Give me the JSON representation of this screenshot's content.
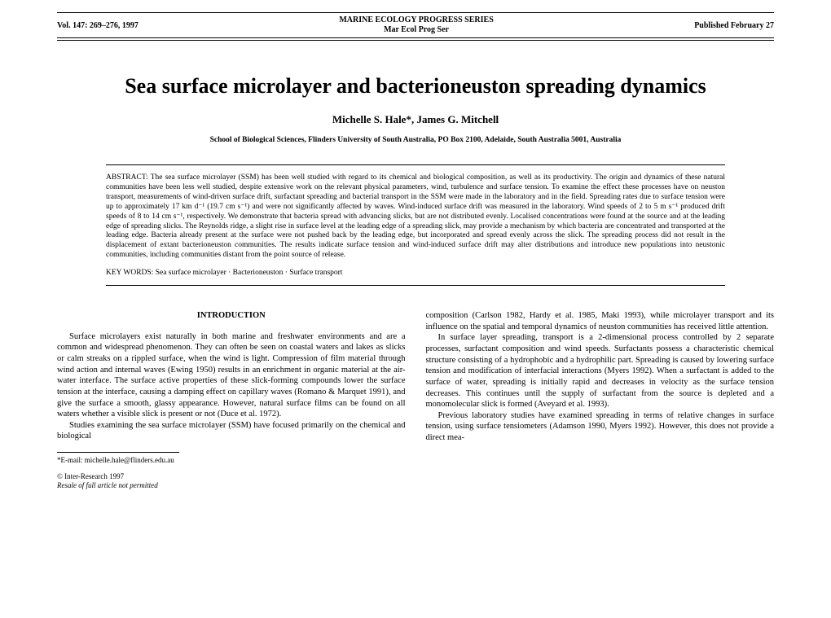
{
  "header": {
    "left": "Vol. 147: 269–276, 1997",
    "center_line1": "MARINE ECOLOGY PROGRESS SERIES",
    "center_line2": "Mar Ecol Prog Ser",
    "right": "Published February 27"
  },
  "title": "Sea surface microlayer and bacterioneuston spreading dynamics",
  "authors": "Michelle S. Hale*, James G. Mitchell",
  "affiliation": "School of Biological Sciences, Flinders University of South Australia, PO Box 2100, Adelaide, South Australia 5001, Australia",
  "abstract": "ABSTRACT: The sea surface microlayer (SSM) has been well studied with regard to its chemical and biological composition, as well as its productivity. The origin and dynamics of these natural communities have been less well studied, despite extensive work on the relevant physical parameters, wind, turbulence and surface tension. To examine the effect these processes have on neuston transport, measurements of wind-driven surface drift, surfactant spreading and bacterial transport in the SSM were made in the laboratory and in the field. Spreading rates due to surface tension were up to approximately 17 km d⁻¹ (19.7 cm s⁻¹) and were not significantly affected by waves. Wind-induced surface drift was measured in the laboratory. Wind speeds of 2 to 5 m s⁻¹ produced drift speeds of 8 to 14 cm s⁻¹, respectively. We demonstrate that bacteria spread with advancing slicks, but are not distributed evenly. Localised concentrations were found at the source and at the leading edge of spreading slicks. The Reynolds ridge, a slight rise in surface level at the leading edge of a spreading slick, may provide a mechanism by which bacteria are concentrated and transported at the leading edge. Bacteria already present at the surface were not pushed back by the leading edge, but incorporated and spread evenly across the slick. The spreading process did not result in the displacement of extant bacterioneuston communities. The results indicate surface tension and wind-induced surface drift may alter distributions and introduce new populations into neustonic communities, including communities distant from the point source of release.",
  "keywords": "KEY WORDS:  Sea surface microlayer · Bacterioneuston · Surface transport",
  "introduction": {
    "heading": "INTRODUCTION",
    "col1_p1": "Surface microlayers exist naturally in both marine and freshwater environments and are a common and widespread phenomenon. They can often be seen on coastal waters and lakes as slicks or calm streaks on a rippled surface, when the wind is light. Compression of film material through wind action and internal waves (Ewing 1950) results in an enrichment in organic material at the air-water interface. The surface active properties of these slick-forming compounds lower the surface tension at the interface, causing a damping effect on capillary waves (Romano & Marquet 1991), and give the surface a smooth, glassy appearance. However, natural surface films can be found on all waters whether a visible slick is present or not (Duce et al. 1972).",
    "col1_p2": "Studies examining the sea surface microlayer (SSM) have focused primarily on the chemical and biological",
    "col2_p1": "composition (Carlson 1982, Hardy et al. 1985, Maki 1993), while microlayer transport and its influence on the spatial and temporal dynamics of neuston communities has received little attention.",
    "col2_p2": "In surface layer spreading, transport is a 2-dimensional process controlled by 2 separate processes, surfactant composition and wind speeds. Surfactants possess a characteristic chemical structure consisting of a hydrophobic and a hydrophilic part. Spreading is caused by lowering surface tension and modification of interfacial interactions (Myers 1992). When a surfactant is added to the surface of water, spreading is initially rapid and decreases in velocity as the surface tension decreases. This continues until the supply of surfactant from the source is depleted and a monomolecular slick is formed (Aveyard et al. 1993).",
    "col2_p3": "Previous laboratory studies have examined spreading in terms of relative changes in surface tension, using surface tensiometers (Adamson 1990, Myers 1992). However, this does not provide a direct mea-"
  },
  "footnote": "*E-mail: michelle.hale@flinders.edu.au",
  "copyright_line1": "© Inter-Research 1997",
  "copyright_line2": "Resale of full article not permitted"
}
